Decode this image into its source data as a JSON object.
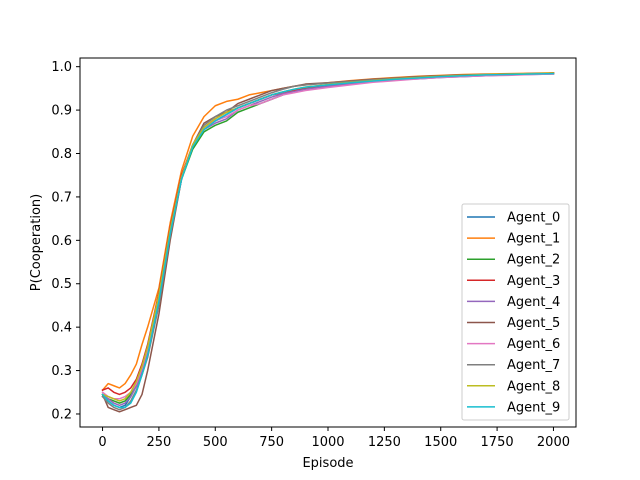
{
  "chart_data": {
    "type": "line",
    "xlabel": "Episode",
    "ylabel": "P(Cooperation)",
    "xlim": [
      -100,
      2100
    ],
    "ylim": [
      0.17,
      1.02
    ],
    "xticks": [
      0,
      250,
      500,
      750,
      1000,
      1250,
      1500,
      1750,
      2000
    ],
    "yticks": [
      0.2,
      0.3,
      0.4,
      0.5,
      0.6,
      0.7,
      0.8,
      0.9,
      1.0
    ],
    "xtick_labels": [
      "0",
      "250",
      "500",
      "750",
      "1000",
      "1250",
      "1500",
      "1750",
      "2000"
    ],
    "ytick_labels": [
      "0.2",
      "0.3",
      "0.4",
      "0.5",
      "0.6",
      "0.7",
      "0.8",
      "0.9",
      "1.0"
    ],
    "legend_position": "lower-right",
    "x": [
      0,
      25,
      50,
      75,
      100,
      125,
      150,
      175,
      200,
      250,
      300,
      350,
      400,
      450,
      500,
      550,
      600,
      650,
      700,
      750,
      800,
      850,
      900,
      1000,
      1100,
      1200,
      1300,
      1400,
      1500,
      1600,
      1700,
      1800,
      1900,
      2000
    ],
    "series": [
      {
        "name": "Agent_0",
        "color": "#1f77b4",
        "values": [
          0.245,
          0.23,
          0.22,
          0.215,
          0.22,
          0.24,
          0.265,
          0.3,
          0.35,
          0.47,
          0.62,
          0.74,
          0.82,
          0.86,
          0.875,
          0.89,
          0.905,
          0.915,
          0.925,
          0.935,
          0.94,
          0.945,
          0.95,
          0.955,
          0.96,
          0.965,
          0.97,
          0.972,
          0.975,
          0.977,
          0.979,
          0.981,
          0.983,
          0.985
        ]
      },
      {
        "name": "Agent_1",
        "color": "#ff7f0e",
        "values": [
          0.255,
          0.27,
          0.265,
          0.26,
          0.27,
          0.29,
          0.315,
          0.36,
          0.4,
          0.49,
          0.64,
          0.76,
          0.84,
          0.885,
          0.91,
          0.92,
          0.925,
          0.935,
          0.94,
          0.945,
          0.95,
          0.955,
          0.958,
          0.963,
          0.968,
          0.972,
          0.975,
          0.978,
          0.98,
          0.982,
          0.983,
          0.984,
          0.985,
          0.986
        ]
      },
      {
        "name": "Agent_2",
        "color": "#2ca02c",
        "values": [
          0.24,
          0.235,
          0.23,
          0.225,
          0.23,
          0.245,
          0.27,
          0.31,
          0.35,
          0.47,
          0.62,
          0.74,
          0.81,
          0.85,
          0.865,
          0.875,
          0.895,
          0.905,
          0.915,
          0.925,
          0.935,
          0.945,
          0.95,
          0.955,
          0.962,
          0.967,
          0.971,
          0.974,
          0.977,
          0.979,
          0.981,
          0.982,
          0.983,
          0.984
        ]
      },
      {
        "name": "Agent_3",
        "color": "#d62728",
        "values": [
          0.255,
          0.26,
          0.25,
          0.245,
          0.25,
          0.26,
          0.28,
          0.315,
          0.36,
          0.48,
          0.63,
          0.75,
          0.82,
          0.86,
          0.88,
          0.895,
          0.905,
          0.915,
          0.925,
          0.935,
          0.94,
          0.945,
          0.952,
          0.958,
          0.963,
          0.968,
          0.972,
          0.975,
          0.978,
          0.98,
          0.982,
          0.983,
          0.984,
          0.985
        ]
      },
      {
        "name": "Agent_4",
        "color": "#9467bd",
        "values": [
          0.245,
          0.235,
          0.225,
          0.22,
          0.225,
          0.24,
          0.265,
          0.3,
          0.34,
          0.46,
          0.61,
          0.74,
          0.82,
          0.855,
          0.87,
          0.88,
          0.9,
          0.91,
          0.92,
          0.93,
          0.938,
          0.943,
          0.948,
          0.955,
          0.96,
          0.965,
          0.969,
          0.973,
          0.976,
          0.978,
          0.98,
          0.981,
          0.982,
          0.983
        ]
      },
      {
        "name": "Agent_5",
        "color": "#8c564b",
        "values": [
          0.245,
          0.215,
          0.21,
          0.205,
          0.21,
          0.215,
          0.22,
          0.245,
          0.3,
          0.43,
          0.6,
          0.74,
          0.82,
          0.87,
          0.885,
          0.895,
          0.915,
          0.925,
          0.935,
          0.945,
          0.95,
          0.955,
          0.96,
          0.963,
          0.967,
          0.971,
          0.974,
          0.977,
          0.979,
          0.981,
          0.982,
          0.983,
          0.984,
          0.985
        ]
      },
      {
        "name": "Agent_6",
        "color": "#e377c2",
        "values": [
          0.25,
          0.24,
          0.235,
          0.235,
          0.24,
          0.25,
          0.27,
          0.305,
          0.35,
          0.47,
          0.62,
          0.745,
          0.82,
          0.86,
          0.875,
          0.885,
          0.9,
          0.91,
          0.915,
          0.925,
          0.935,
          0.94,
          0.945,
          0.952,
          0.958,
          0.964,
          0.968,
          0.972,
          0.975,
          0.977,
          0.979,
          0.98,
          0.982,
          0.983
        ]
      },
      {
        "name": "Agent_7",
        "color": "#7f7f7f",
        "values": [
          0.24,
          0.225,
          0.215,
          0.21,
          0.215,
          0.23,
          0.255,
          0.29,
          0.33,
          0.45,
          0.61,
          0.74,
          0.82,
          0.865,
          0.885,
          0.9,
          0.91,
          0.92,
          0.93,
          0.94,
          0.948,
          0.955,
          0.958,
          0.962,
          0.966,
          0.97,
          0.973,
          0.976,
          0.978,
          0.98,
          0.982,
          0.983,
          0.984,
          0.985
        ]
      },
      {
        "name": "Agent_8",
        "color": "#bcbd22",
        "values": [
          0.245,
          0.24,
          0.235,
          0.23,
          0.235,
          0.25,
          0.275,
          0.31,
          0.355,
          0.475,
          0.625,
          0.745,
          0.82,
          0.86,
          0.88,
          0.895,
          0.905,
          0.915,
          0.925,
          0.935,
          0.942,
          0.948,
          0.953,
          0.959,
          0.964,
          0.968,
          0.972,
          0.975,
          0.978,
          0.98,
          0.982,
          0.983,
          0.984,
          0.985
        ]
      },
      {
        "name": "Agent_9",
        "color": "#17becf",
        "values": [
          0.245,
          0.23,
          0.22,
          0.215,
          0.215,
          0.225,
          0.25,
          0.29,
          0.335,
          0.46,
          0.615,
          0.74,
          0.815,
          0.855,
          0.875,
          0.89,
          0.905,
          0.915,
          0.925,
          0.935,
          0.942,
          0.948,
          0.953,
          0.958,
          0.963,
          0.967,
          0.971,
          0.974,
          0.977,
          0.979,
          0.981,
          0.982,
          0.983,
          0.984
        ]
      }
    ]
  }
}
